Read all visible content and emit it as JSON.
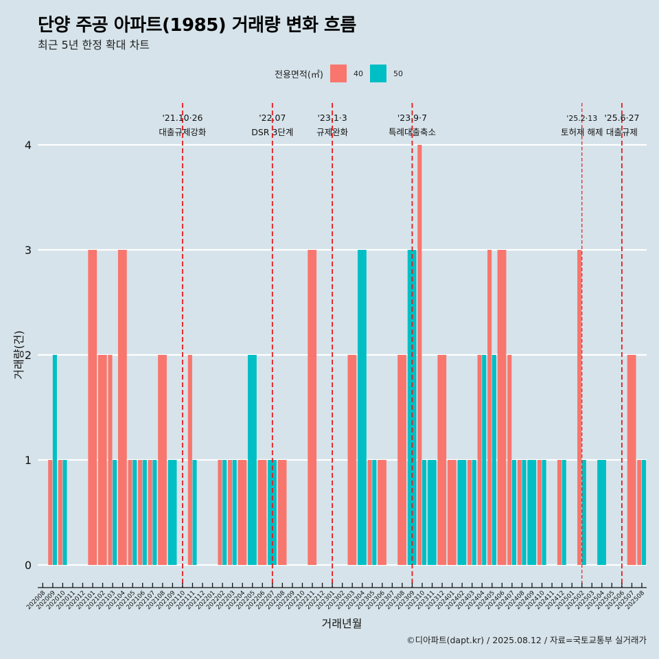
{
  "header": {
    "title": "단양 주공 아파트(1985) 거래량 변화 흐름",
    "subtitle": "최근 5년 한정 확대 차트"
  },
  "legend": {
    "title": "전용면적(㎡)",
    "items": [
      {
        "label": "40",
        "color": "#f8766d"
      },
      {
        "label": "50",
        "color": "#00bfc4"
      }
    ]
  },
  "caption": "©디아파트(dapt.kr) / 2025.08.12 / 자료=국토교통부 실거래가",
  "chart_data": {
    "type": "bar",
    "title": "단양 주공 아파트(1985) 거래량 변화 흐름",
    "subtitle": "최근 5년 한정 확대 차트",
    "xlabel": "거래년월",
    "ylabel": "거래량(건)",
    "ylim": [
      0,
      4
    ],
    "yticks": [
      0,
      1,
      2,
      3,
      4
    ],
    "grid": true,
    "legend_position": "top",
    "legend_title": "전용면적(㎡)",
    "categories": [
      "202008",
      "202009",
      "202010",
      "202011",
      "202012",
      "202101",
      "202102",
      "202103",
      "202104",
      "202105",
      "202106",
      "202107",
      "202108",
      "202109",
      "202110",
      "202111",
      "202112",
      "202201",
      "202202",
      "202203",
      "202204",
      "202205",
      "202206",
      "202207",
      "202208",
      "202209",
      "202210",
      "202211",
      "202212",
      "202301",
      "202302",
      "202303",
      "202304",
      "202305",
      "202306",
      "202307",
      "202308",
      "202309",
      "202310",
      "202311",
      "202312",
      "202401",
      "202402",
      "202403",
      "202404",
      "202405",
      "202406",
      "202407",
      "202408",
      "202409",
      "202410",
      "202411",
      "202412",
      "202501",
      "202502",
      "202503",
      "202504",
      "202505",
      "202506",
      "202507",
      "202508"
    ],
    "series": [
      {
        "name": "40",
        "color": "#f8766d",
        "values": [
          0,
          1,
          1,
          0,
          0,
          3,
          2,
          2,
          3,
          1,
          1,
          1,
          2,
          0,
          0,
          2,
          0,
          0,
          1,
          1,
          1,
          0,
          1,
          0,
          1,
          0,
          0,
          3,
          0,
          0,
          0,
          2,
          0,
          1,
          1,
          0,
          2,
          0,
          4,
          0,
          2,
          1,
          0,
          1,
          2,
          3,
          3,
          2,
          1,
          0,
          1,
          0,
          1,
          0,
          3,
          0,
          0,
          0,
          0,
          2,
          1
        ]
      },
      {
        "name": "50",
        "color": "#00bfc4",
        "values": [
          0,
          2,
          1,
          0,
          0,
          0,
          0,
          1,
          0,
          1,
          1,
          1,
          0,
          1,
          0,
          1,
          0,
          0,
          1,
          1,
          0,
          2,
          0,
          1,
          0,
          0,
          0,
          0,
          0,
          0,
          0,
          0,
          3,
          1,
          0,
          0,
          0,
          3,
          1,
          1,
          0,
          0,
          1,
          1,
          2,
          2,
          0,
          1,
          1,
          1,
          1,
          0,
          1,
          0,
          1,
          0,
          1,
          0,
          0,
          0,
          1
        ]
      }
    ],
    "annotations": [
      {
        "x": "202110",
        "date": "'21.10·26",
        "label": "대출규제강화"
      },
      {
        "x": "202207",
        "date": "'22.07",
        "label": "DSR 3단계"
      },
      {
        "x": "202301",
        "date": "'23.1·3",
        "label": "규제완화"
      },
      {
        "x": "202309",
        "date": "'23.9·7",
        "label": "특례대출축소"
      },
      {
        "x": "202502",
        "date": "'25.2·13",
        "label": "토허제 해제"
      },
      {
        "x": "202506",
        "date": "'25.6·27",
        "label": "대출규제"
      }
    ],
    "annotation_line_color": "#e41a1c"
  }
}
